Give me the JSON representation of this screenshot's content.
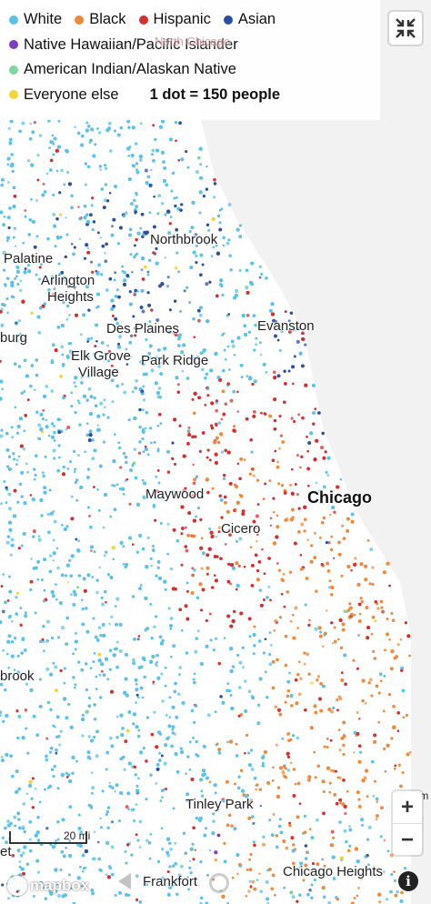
{
  "legend": {
    "items_row1": [
      {
        "label": "White",
        "color": "#5bc2e7"
      },
      {
        "label": "Black",
        "color": "#f0883a"
      },
      {
        "label": "Hispanic",
        "color": "#d32f2f"
      },
      {
        "label": "Asian",
        "color": "#2b4fa0"
      }
    ],
    "items_rows": [
      {
        "label": "Native Hawaiian/Pacific Islander",
        "color": "#7b3fbf"
      },
      {
        "label": "American Indian/Alaskan Native",
        "color": "#7dd69a"
      },
      {
        "label": "Everyone else",
        "color": "#f2d63a"
      }
    ],
    "scale_note": "1 dot = 150 people"
  },
  "places": {
    "north_chicago": "North Chicago",
    "palatine": "Palatine",
    "northbrook": "Northbrook",
    "arlington_heights_1": "Arlington",
    "arlington_heights_2": "Heights",
    "des_plaines": "Des Plaines",
    "evanston": "Evanston",
    "schaumburg": "burg",
    "elk_grove_1": "Elk Grove",
    "elk_grove_2": "Village",
    "park_ridge": "Park Ridge",
    "maywood": "Maywood",
    "chicago": "Chicago",
    "cicero": "Cicero",
    "bolingbrook": "brook",
    "tinley_park": "Tinley Park",
    "frankfort": "Frankfort",
    "chicago_heights": "Chicago Heights",
    "edge_left": "et",
    "edge_right": "Ham"
  },
  "controls": {
    "zoom_in": "+",
    "zoom_out": "−",
    "scale_label": "20 mi",
    "attribution_logo": "mapbox",
    "info": "i"
  },
  "colors": {
    "water": "#f2f2f2",
    "land": "#ffffff"
  }
}
